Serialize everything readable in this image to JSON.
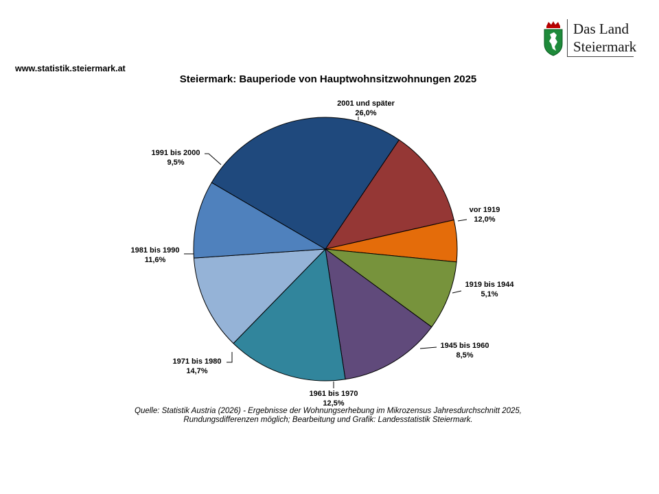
{
  "header": {
    "url": "www.statistik.steiermark.at",
    "logo_line1": "Das Land",
    "logo_line2": "Steiermark"
  },
  "chart_data": {
    "type": "pie",
    "title": "Steiermark: Bauperiode von Hauptwohnsitzwohnungen 2025",
    "start_angle_deg": 56,
    "direction": "clockwise",
    "slices": [
      {
        "label": "vor 1919",
        "value": 12.0,
        "value_label": "12,0%",
        "color": "#953735"
      },
      {
        "label": "1919 bis 1944",
        "value": 5.1,
        "value_label": "5,1%",
        "color": "#e46c0a"
      },
      {
        "label": "1945 bis 1960",
        "value": 8.5,
        "value_label": "8,5%",
        "color": "#77933c"
      },
      {
        "label": "1961 bis 1970",
        "value": 12.5,
        "value_label": "12,5%",
        "color": "#604a7b"
      },
      {
        "label": "1971 bis 1980",
        "value": 14.7,
        "value_label": "14,7%",
        "color": "#31859c"
      },
      {
        "label": "1981 bis 1990",
        "value": 11.6,
        "value_label": "11,6%",
        "color": "#95b3d7"
      },
      {
        "label": "1991 bis 2000",
        "value": 9.5,
        "value_label": "9,5%",
        "color": "#4f81bd"
      },
      {
        "label": "2001 und später",
        "value": 26.0,
        "value_label": "26,0%",
        "color": "#1f497d"
      }
    ]
  },
  "source": {
    "line1": "Quelle: Statistik Austria (2026) - Ergebnisse der Wohnungserhebung im Mikrozensus Jahresdurchschnitt 2025,",
    "line2": "Rundungsdifferenzen möglich; Bearbeitung und Grafik: Landesstatistik Steiermark."
  }
}
